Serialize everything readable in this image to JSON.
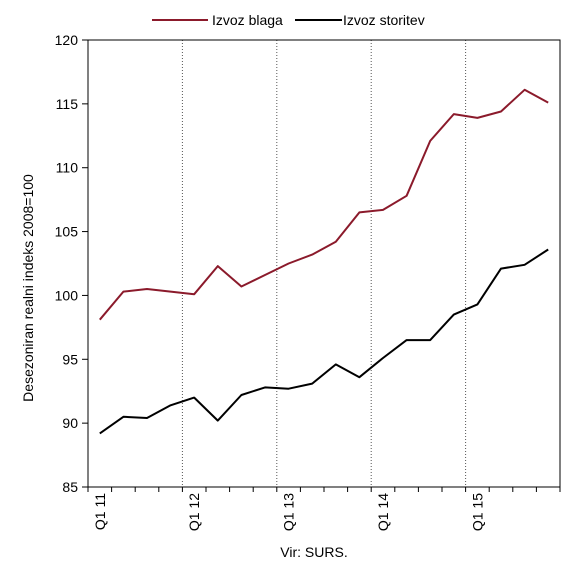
{
  "chart_data": {
    "type": "line",
    "title": "",
    "xlabel": "",
    "ylabel": "Desezoniran realni indeks 2008=100",
    "source_note": "Vir: SURS.",
    "ylim": [
      85,
      120
    ],
    "yticks": [
      85,
      90,
      95,
      100,
      105,
      110,
      115,
      120
    ],
    "grid": "dotted vertical at year starts",
    "legend_position": "top-center",
    "x": [
      "Q1 11",
      "Q2 11",
      "Q3 11",
      "Q4 11",
      "Q1 12",
      "Q2 12",
      "Q3 12",
      "Q4 12",
      "Q1 13",
      "Q2 13",
      "Q3 13",
      "Q4 13",
      "Q1 14",
      "Q2 14",
      "Q3 14",
      "Q4 14",
      "Q1 15",
      "Q2 15",
      "Q3 15",
      "Q4 15"
    ],
    "x_tick_labels": [
      {
        "index": 0,
        "label": "Q1 11"
      },
      {
        "index": 4,
        "label": "Q1 12"
      },
      {
        "index": 8,
        "label": "Q1 13"
      },
      {
        "index": 12,
        "label": "Q1 14"
      },
      {
        "index": 16,
        "label": "Q1 15"
      }
    ],
    "series": [
      {
        "name": "Izvoz blaga",
        "color": "#8b1a2b",
        "values": [
          98.1,
          100.3,
          100.5,
          100.3,
          100.1,
          102.3,
          100.7,
          101.6,
          102.5,
          103.2,
          104.2,
          106.5,
          106.7,
          107.8,
          112.1,
          114.2,
          113.9,
          114.4,
          116.1,
          115.1
        ]
      },
      {
        "name": "Izvoz storitev",
        "color": "#000000",
        "values": [
          89.2,
          90.5,
          90.4,
          91.4,
          92.0,
          90.2,
          92.2,
          92.8,
          92.7,
          93.1,
          94.6,
          93.6,
          95.1,
          96.5,
          96.5,
          98.5,
          99.3,
          102.1,
          102.4,
          103.6
        ]
      }
    ]
  }
}
